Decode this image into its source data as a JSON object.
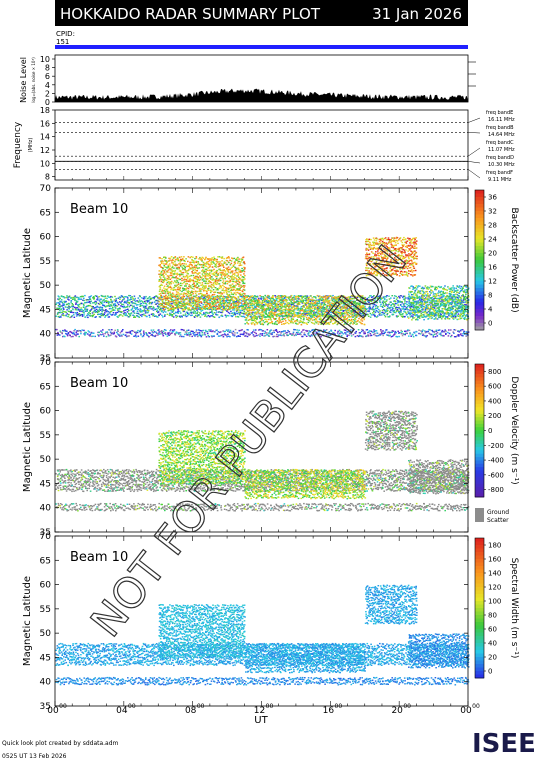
{
  "header": {
    "title": "HOKKAIDO RADAR SUMMARY PLOT",
    "date": "31 Jan 2026",
    "cpid_label": "CPID:",
    "cpid_value": "151"
  },
  "noise_panel": {
    "ylabel": "Noise Level",
    "ylabel_sub": "log₁₀(abs. noise × 10⁴)",
    "yticks": [
      "0",
      "2",
      "4",
      "6",
      "8",
      "10"
    ],
    "ylim": [
      0,
      10
    ]
  },
  "freq_panel": {
    "ylabel": "Frequency",
    "unit": "(MHz)",
    "yticks": [
      "8",
      "10",
      "12",
      "14",
      "16",
      "18"
    ],
    "ylim": [
      7.5,
      18
    ],
    "bands": [
      {
        "label": "freq bandE",
        "value": "16.11 MHz",
        "freq": 16.11
      },
      {
        "label": "freq bandB",
        "value": "14.64 MHz",
        "freq": 14.64
      },
      {
        "label": "freq bandC",
        "value": "11.07 MHz",
        "freq": 11.07
      },
      {
        "label": "freq bandD",
        "value": "10.30 MHz",
        "freq": 10.3
      },
      {
        "label": "freq bandF",
        "value": "9.11 MHz",
        "freq": 9.11
      }
    ]
  },
  "panels": [
    {
      "beam": "Beam 10",
      "ylabel": "Magnetic Latitude",
      "yticks": [
        "35",
        "40",
        "45",
        "50",
        "55",
        "60",
        "65",
        "70"
      ],
      "cbar_title": "Backscatter Power (dB)",
      "cbar_ticks": [
        "0",
        "4",
        "8",
        "12",
        "16",
        "20",
        "24",
        "28",
        "32",
        "36"
      ],
      "ground_scatter": false
    },
    {
      "beam": "Beam 10",
      "ylabel": "Magnetic Latitude",
      "yticks": [
        "35",
        "40",
        "45",
        "50",
        "55",
        "60",
        "65",
        "70"
      ],
      "cbar_title": "Doppler Velocity (m s⁻¹)",
      "cbar_ticks": [
        "-800",
        "-600",
        "-400",
        "-200",
        "0",
        "200",
        "400",
        "600",
        "800"
      ],
      "ground_scatter": true,
      "ground_label_1": "Ground",
      "ground_label_2": "Scatter"
    },
    {
      "beam": "Beam 10",
      "ylabel": "Magnetic Latitude",
      "yticks": [
        "35",
        "40",
        "45",
        "50",
        "55",
        "60",
        "65",
        "70"
      ],
      "cbar_title": "Spectral Width (m s⁻¹)",
      "cbar_ticks": [
        "0",
        "20",
        "40",
        "60",
        "80",
        "100",
        "120",
        "140",
        "160",
        "180"
      ],
      "ground_scatter": false
    }
  ],
  "xaxis": {
    "label": "UT",
    "ticks": [
      {
        "h": "00",
        "m": "00"
      },
      {
        "h": "04",
        "m": "00"
      },
      {
        "h": "08",
        "m": "00"
      },
      {
        "h": "12",
        "m": "00"
      },
      {
        "h": "16",
        "m": "00"
      },
      {
        "h": "20",
        "m": "00"
      },
      {
        "h": "00",
        "m": "00"
      }
    ]
  },
  "footer": {
    "line1": "Quick look plot created by sddata.adm",
    "line2": "0525 UT 13 Feb 2026",
    "logo": "ISEE"
  },
  "watermark": "NOT FOR PUBLICATION",
  "colors": {
    "header_bg": "#000000",
    "cpid_bar": "#2020ff",
    "ground_scatter": "#8c8c8c"
  },
  "chart_data": {
    "type": "heatmap",
    "title": "HOKKAIDO RADAR SUMMARY PLOT",
    "xlabel": "UT",
    "ylabel": "Magnetic Latitude",
    "xlim_hours": [
      0,
      24
    ],
    "ylim_mlat": [
      35,
      70
    ],
    "grid": false,
    "legend_position": "right colorbars",
    "noise_level_ylim": [
      0,
      10
    ],
    "frequency_ylim_mhz": [
      7.5,
      18
    ],
    "frequency_bands_mhz": [
      16.11,
      14.64,
      11.07,
      10.3,
      9.11
    ],
    "power_range_db": [
      0,
      38
    ],
    "velocity_range_ms": [
      -900,
      900
    ],
    "width_range_ms": [
      0,
      190
    ],
    "scatter_regions": [
      {
        "t0": 0,
        "t1": 24,
        "lat0": 43.5,
        "lat1": 48,
        "power": 14,
        "velocity": 0,
        "width": 40
      },
      {
        "t0": 0,
        "t1": 24,
        "lat0": 39.5,
        "lat1": 41,
        "power": 8,
        "velocity": 0,
        "width": 30
      },
      {
        "t0": 6,
        "t1": 11,
        "lat0": 45,
        "lat1": 56,
        "power": 26,
        "velocity": -100,
        "width": 50
      },
      {
        "t0": 11,
        "t1": 18,
        "lat0": 42,
        "lat1": 48,
        "power": 24,
        "velocity": -150,
        "width": 40
      },
      {
        "t0": 18,
        "t1": 21,
        "lat0": 52,
        "lat1": 60,
        "power": 30,
        "velocity": 0,
        "width": 40
      },
      {
        "t0": 20.5,
        "t1": 24,
        "lat0": 43,
        "lat1": 50,
        "power": 18,
        "velocity": 0,
        "width": 30
      }
    ]
  }
}
